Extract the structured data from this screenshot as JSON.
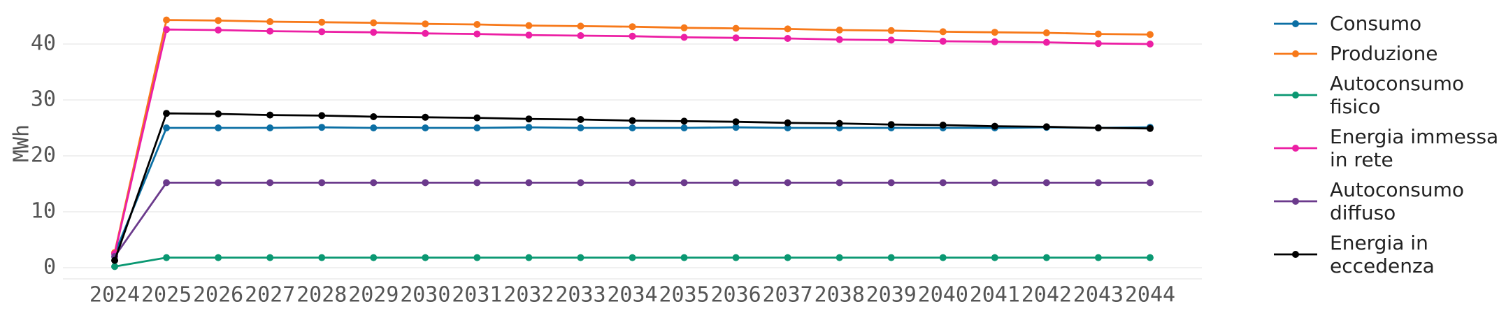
{
  "chart_data": {
    "type": "line",
    "y_label": "MWh",
    "x": [
      2024,
      2025,
      2026,
      2027,
      2028,
      2029,
      2030,
      2031,
      2032,
      2033,
      2034,
      2035,
      2036,
      2037,
      2038,
      2039,
      2040,
      2041,
      2042,
      2043,
      2044
    ],
    "xlim": [
      2023,
      2045
    ],
    "xticks": [
      2024,
      2025,
      2026,
      2027,
      2028,
      2029,
      2030,
      2031,
      2032,
      2033,
      2034,
      2035,
      2036,
      2037,
      2038,
      2039,
      2040,
      2041,
      2042,
      2043,
      2044
    ],
    "ylim": [
      -2,
      47
    ],
    "yticks": [
      0,
      10,
      20,
      30,
      40
    ],
    "grid": true,
    "series": [
      {
        "name": "Consumo",
        "color": "#0b6fa4",
        "values": [
          2.5,
          25.0,
          25.0,
          25.0,
          25.1,
          25.0,
          25.0,
          25.0,
          25.1,
          25.0,
          25.0,
          25.0,
          25.1,
          25.0,
          25.0,
          25.0,
          25.0,
          25.0,
          25.1,
          25.0,
          25.1
        ]
      },
      {
        "name": "Produzione",
        "color": "#f7791a",
        "values": [
          2.7,
          44.3,
          44.2,
          44.0,
          43.9,
          43.8,
          43.6,
          43.5,
          43.3,
          43.2,
          43.1,
          42.9,
          42.8,
          42.7,
          42.5,
          42.4,
          42.2,
          42.1,
          42.0,
          41.8,
          41.7
        ]
      },
      {
        "name": "Autoconsumo\nfisico",
        "color": "#0a9872",
        "values": [
          0.2,
          1.8,
          1.8,
          1.8,
          1.8,
          1.8,
          1.8,
          1.8,
          1.8,
          1.8,
          1.8,
          1.8,
          1.8,
          1.8,
          1.8,
          1.8,
          1.8,
          1.8,
          1.8,
          1.8,
          1.8
        ]
      },
      {
        "name": "Energia immessa\nin rete",
        "color": "#ec1fa4",
        "values": [
          2.5,
          42.6,
          42.5,
          42.3,
          42.2,
          42.1,
          41.9,
          41.8,
          41.6,
          41.5,
          41.4,
          41.2,
          41.1,
          41.0,
          40.8,
          40.7,
          40.5,
          40.4,
          40.3,
          40.1,
          40.0
        ]
      },
      {
        "name": "Autoconsumo\ndiffuso",
        "color": "#6b3a8c",
        "values": [
          2.0,
          15.2,
          15.2,
          15.2,
          15.2,
          15.2,
          15.2,
          15.2,
          15.2,
          15.2,
          15.2,
          15.2,
          15.2,
          15.2,
          15.2,
          15.2,
          15.2,
          15.2,
          15.2,
          15.2,
          15.2
        ]
      },
      {
        "name": "Energia in\neccedenza",
        "color": "#000000",
        "values": [
          1.3,
          27.6,
          27.5,
          27.3,
          27.2,
          27.0,
          26.9,
          26.8,
          26.6,
          26.5,
          26.3,
          26.2,
          26.1,
          25.9,
          25.8,
          25.6,
          25.5,
          25.3,
          25.2,
          25.0,
          24.9
        ]
      }
    ]
  }
}
